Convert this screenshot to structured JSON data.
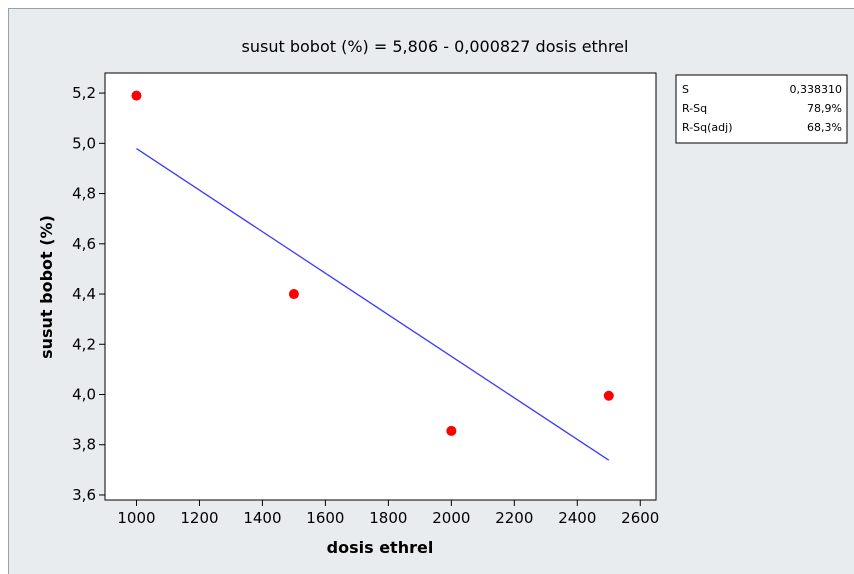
{
  "chart_data": {
    "type": "scatter",
    "title": "susut bobot (%) =  5,806 - 0,000827 dosis ethrel",
    "xlabel": "dosis ethrel",
    "ylabel": "susut bobot (%)",
    "xlim": [
      900,
      2650
    ],
    "ylim": [
      3.58,
      5.28
    ],
    "x_ticks": [
      1000,
      1200,
      1400,
      1600,
      1800,
      2000,
      2200,
      2400,
      2600
    ],
    "x_tick_labels": [
      "1000",
      "1200",
      "1400",
      "1600",
      "1800",
      "2000",
      "2200",
      "2400",
      "2600"
    ],
    "y_ticks": [
      3.6,
      3.8,
      4.0,
      4.2,
      4.4,
      4.6,
      4.8,
      5.0,
      5.2
    ],
    "y_tick_labels": [
      "3,6",
      "3,8",
      "4,0",
      "4,2",
      "4,4",
      "4,6",
      "4,8",
      "5,0",
      "5,2"
    ],
    "points": [
      {
        "x": 1000,
        "y": 5.19
      },
      {
        "x": 1500,
        "y": 4.4
      },
      {
        "x": 2000,
        "y": 3.855
      },
      {
        "x": 2500,
        "y": 3.995
      }
    ],
    "fit_line": {
      "x": [
        1000,
        2500
      ],
      "y": [
        4.979,
        3.7385
      ]
    },
    "point_color": "#ff0000",
    "line_color": "#3b3bff",
    "grid": false,
    "stats": [
      {
        "label": "S",
        "value": "0,338310"
      },
      {
        "label": "R-Sq",
        "value": "78,9%"
      },
      {
        "label": "R-Sq(adj)",
        "value": "68,3%"
      }
    ]
  }
}
